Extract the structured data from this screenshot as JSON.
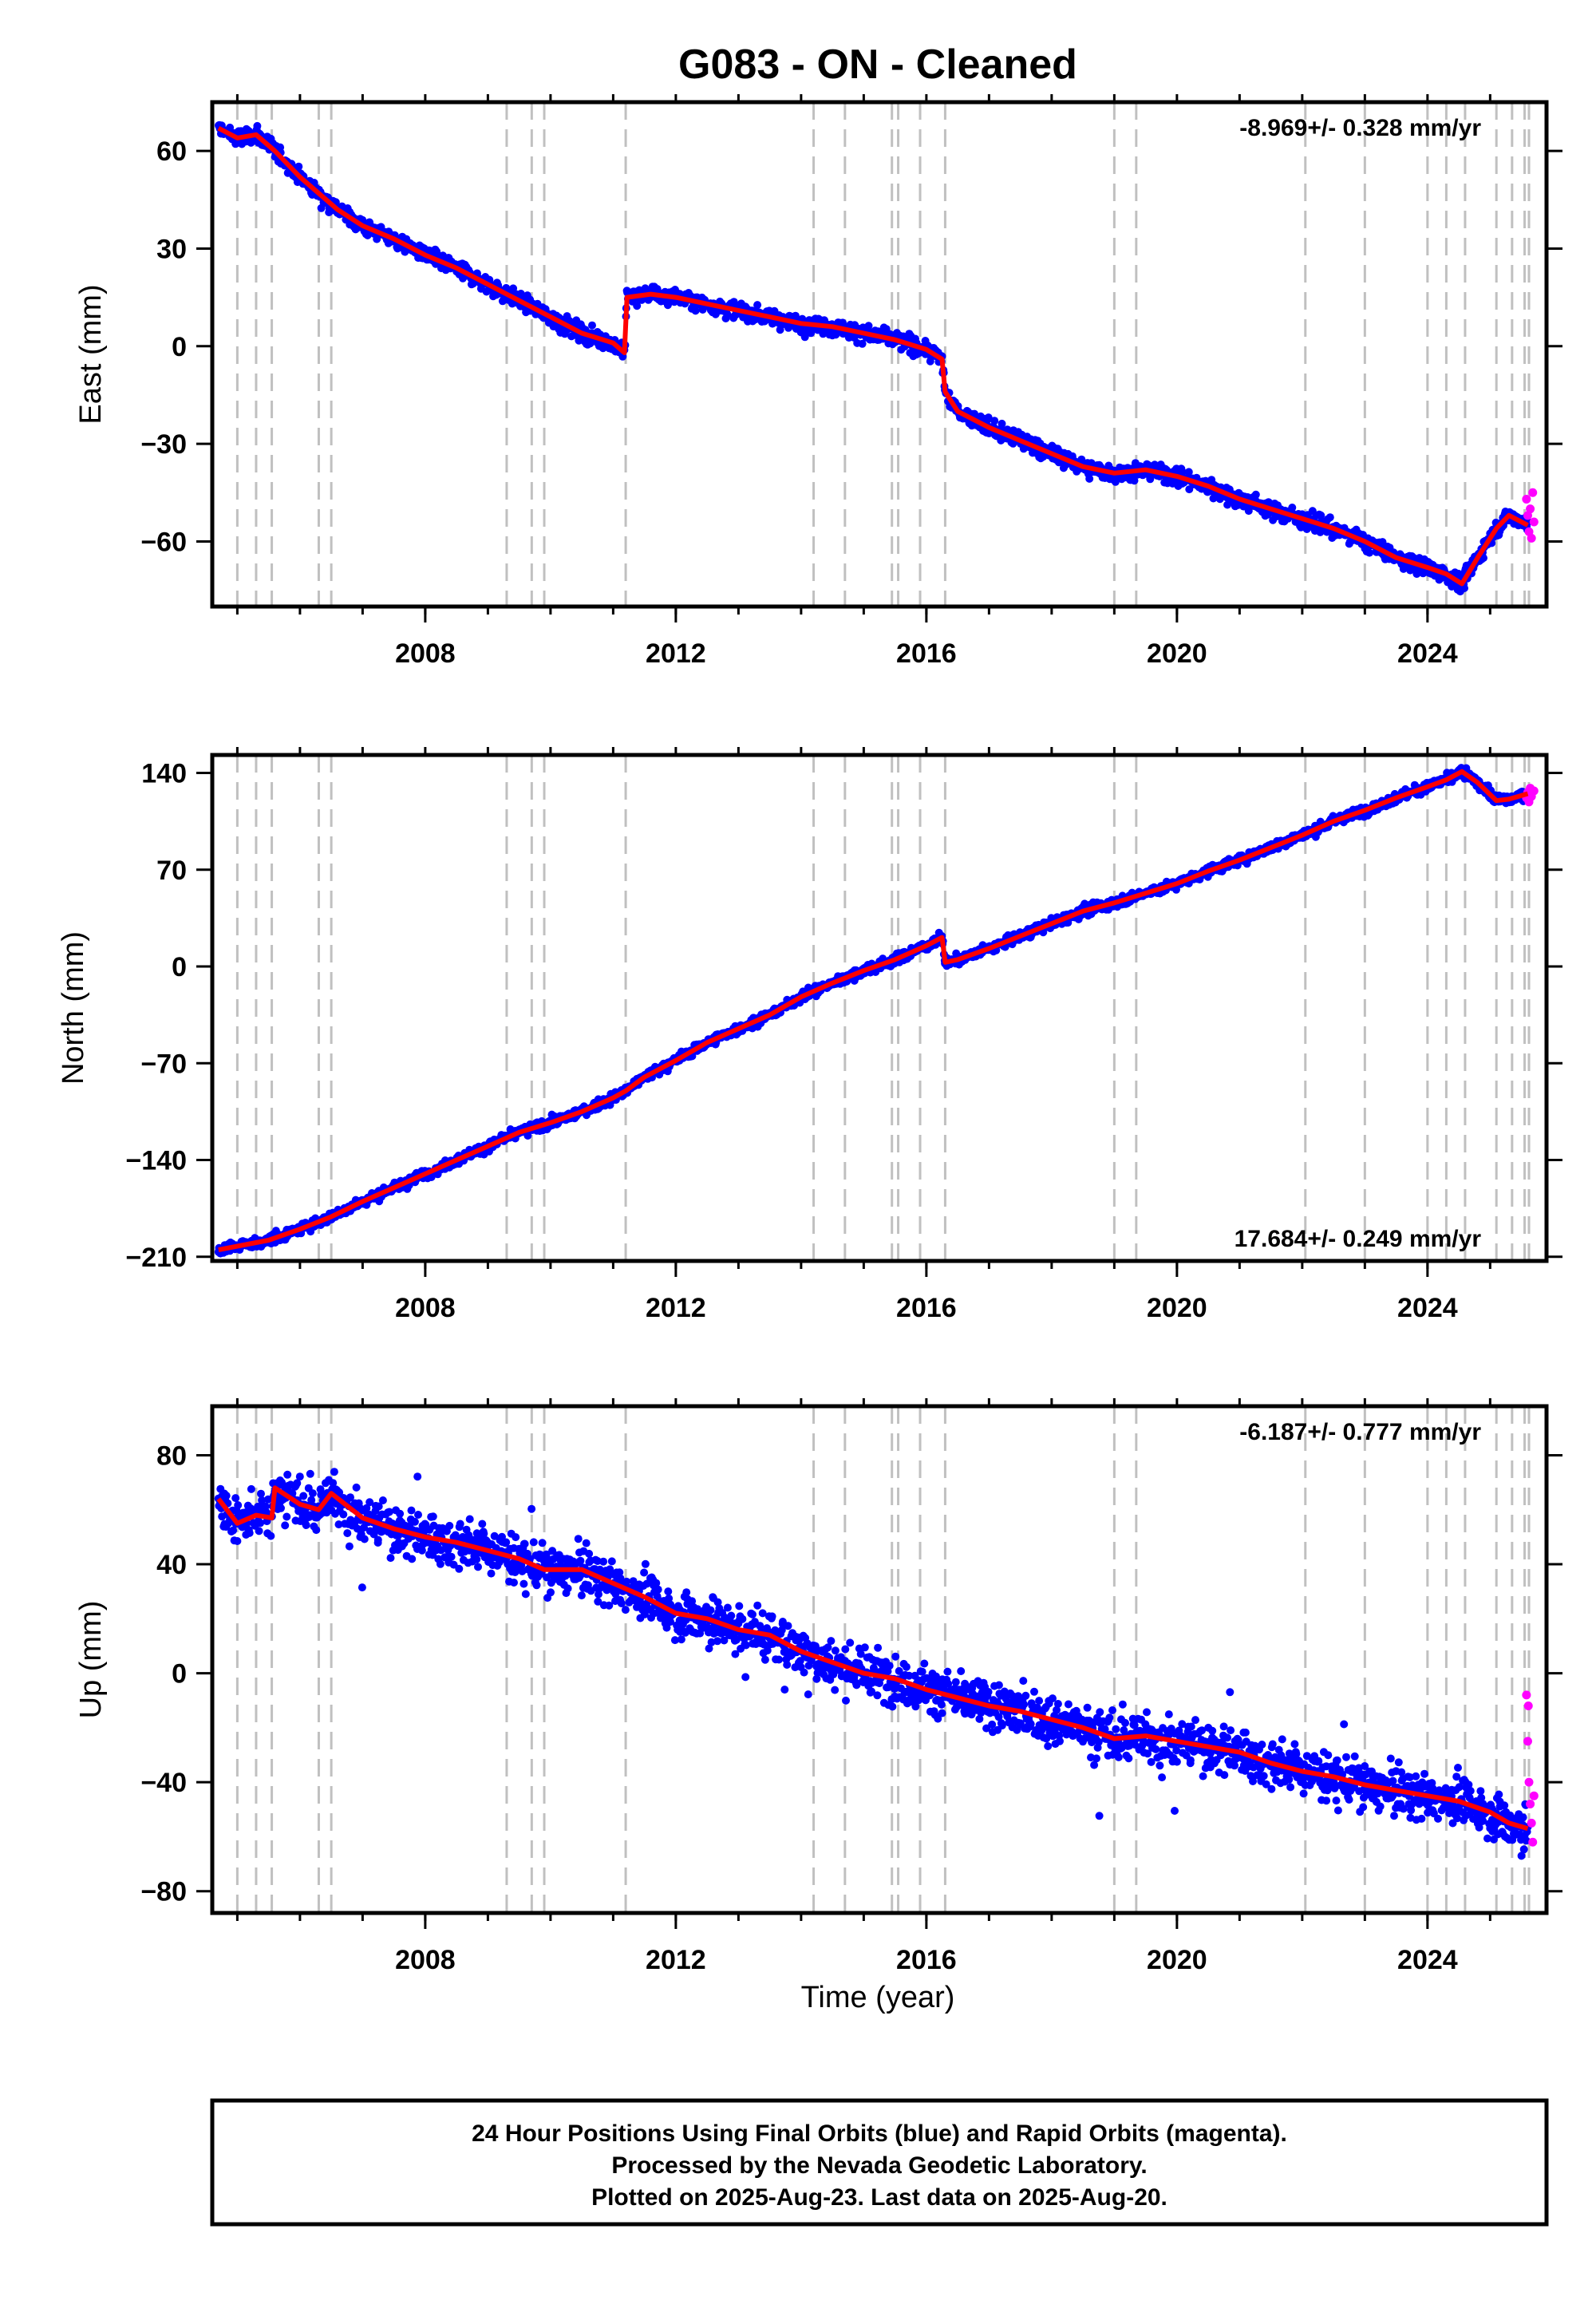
{
  "title": "G083  - ON - Cleaned",
  "xlabel": "Time (year)",
  "footer": {
    "line1": "24 Hour Positions Using Final Orbits (blue) and Rapid Orbits (magenta).",
    "line2": "Processed by the Nevada Geodetic Laboratory.",
    "line3": "Plotted on 2025-Aug-23. Last data on 2025-Aug-20."
  },
  "colors": {
    "final_orbits": "#0000ff",
    "rapid_orbits": "#ff00ff",
    "model": "#ff0000",
    "event_lines": "#c0c0c0"
  },
  "chart_data": [
    {
      "type": "scatter",
      "component": "east",
      "ylabel": "East (mm)",
      "rate_label": "-8.969+/- 0.328 mm/yr",
      "rate_position": "top-right",
      "xlim": [
        2004.6,
        2025.9
      ],
      "ylim": [
        -80,
        75
      ],
      "xticks": [
        2008,
        2012,
        2016,
        2020,
        2024
      ],
      "yticks": [
        60,
        30,
        0,
        -30,
        -60
      ],
      "grid": false,
      "event_years": [
        2005.0,
        2005.3,
        2005.55,
        2006.3,
        2006.5,
        2009.3,
        2009.7,
        2009.9,
        2011.2,
        2014.2,
        2014.7,
        2015.45,
        2015.55,
        2015.9,
        2016.3,
        2019.0,
        2019.35,
        2022.05,
        2023.0,
        2024.0,
        2024.3,
        2024.6,
        2025.1,
        2025.35,
        2025.55,
        2025.62
      ],
      "series": [
        {
          "values": [
            [
              2004.7,
              67
            ],
            [
              2005.0,
              64
            ],
            [
              2005.3,
              65
            ],
            [
              2005.6,
              60
            ],
            [
              2006.0,
              52
            ],
            [
              2006.3,
              47
            ],
            [
              2006.6,
              42
            ],
            [
              2007.0,
              37
            ],
            [
              2007.5,
              33
            ],
            [
              2008.0,
              28
            ],
            [
              2008.5,
              24
            ],
            [
              2009.0,
              19
            ],
            [
              2009.5,
              14
            ],
            [
              2010.0,
              9
            ],
            [
              2010.5,
              4
            ],
            [
              2011.0,
              1
            ],
            [
              2011.18,
              -2
            ],
            [
              2011.22,
              15
            ],
            [
              2011.6,
              16
            ],
            [
              2012.0,
              15
            ],
            [
              2012.5,
              13
            ],
            [
              2013.0,
              11
            ],
            [
              2013.5,
              9
            ],
            [
              2014.0,
              7
            ],
            [
              2014.5,
              6
            ],
            [
              2015.0,
              4
            ],
            [
              2015.5,
              2
            ],
            [
              2016.0,
              -1
            ],
            [
              2016.25,
              -4
            ],
            [
              2016.3,
              -14
            ],
            [
              2016.5,
              -20
            ],
            [
              2017.0,
              -25
            ],
            [
              2017.5,
              -29
            ],
            [
              2018.0,
              -33
            ],
            [
              2018.5,
              -37
            ],
            [
              2019.0,
              -39
            ],
            [
              2019.5,
              -38
            ],
            [
              2020.0,
              -40
            ],
            [
              2020.5,
              -43
            ],
            [
              2021.0,
              -47
            ],
            [
              2021.5,
              -50
            ],
            [
              2022.0,
              -53
            ],
            [
              2022.5,
              -56
            ],
            [
              2023.0,
              -60
            ],
            [
              2023.5,
              -65
            ],
            [
              2024.0,
              -68
            ],
            [
              2024.3,
              -70
            ],
            [
              2024.55,
              -73
            ],
            [
              2024.8,
              -65
            ],
            [
              2025.1,
              -56
            ],
            [
              2025.3,
              -52
            ],
            [
              2025.6,
              -55
            ]
          ]
        }
      ],
      "rapid_values": [
        [
          2025.58,
          -47
        ],
        [
          2025.6,
          -52
        ],
        [
          2025.62,
          -57
        ],
        [
          2025.64,
          -50
        ],
        [
          2025.66,
          -59
        ],
        [
          2025.68,
          -45
        ],
        [
          2025.7,
          -54
        ]
      ]
    },
    {
      "type": "scatter",
      "component": "north",
      "ylabel": "North (mm)",
      "rate_label": "17.684+/- 0.249 mm/yr",
      "rate_position": "bottom-right",
      "xlim": [
        2004.6,
        2025.9
      ],
      "ylim": [
        -213,
        153
      ],
      "xticks": [
        2008,
        2012,
        2016,
        2020,
        2024
      ],
      "yticks": [
        140,
        70,
        0,
        -70,
        -140,
        -210
      ],
      "grid": false,
      "event_years": [
        2005.0,
        2005.3,
        2005.55,
        2006.3,
        2006.5,
        2009.3,
        2009.7,
        2009.9,
        2011.2,
        2014.2,
        2014.7,
        2015.45,
        2015.55,
        2015.9,
        2016.3,
        2019.0,
        2019.35,
        2022.05,
        2023.0,
        2024.0,
        2024.3,
        2024.6,
        2025.1,
        2025.35,
        2025.55,
        2025.62
      ],
      "series": [
        {
          "values": [
            [
              2004.7,
              -205
            ],
            [
              2005.5,
              -198
            ],
            [
              2006.0,
              -190
            ],
            [
              2006.5,
              -181
            ],
            [
              2007.0,
              -170
            ],
            [
              2007.5,
              -160
            ],
            [
              2008.0,
              -150
            ],
            [
              2008.5,
              -140
            ],
            [
              2009.0,
              -130
            ],
            [
              2009.5,
              -120
            ],
            [
              2010.0,
              -113
            ],
            [
              2010.5,
              -105
            ],
            [
              2011.0,
              -95
            ],
            [
              2011.2,
              -90
            ],
            [
              2011.5,
              -80
            ],
            [
              2012.0,
              -68
            ],
            [
              2012.5,
              -55
            ],
            [
              2013.0,
              -45
            ],
            [
              2013.5,
              -35
            ],
            [
              2014.0,
              -22
            ],
            [
              2014.5,
              -12
            ],
            [
              2015.0,
              -3
            ],
            [
              2015.5,
              5
            ],
            [
              2016.0,
              15
            ],
            [
              2016.25,
              21
            ],
            [
              2016.3,
              3
            ],
            [
              2016.5,
              5
            ],
            [
              2017.0,
              13
            ],
            [
              2017.5,
              22
            ],
            [
              2018.0,
              31
            ],
            [
              2018.5,
              40
            ],
            [
              2019.0,
              46
            ],
            [
              2019.5,
              53
            ],
            [
              2020.0,
              60
            ],
            [
              2020.5,
              69
            ],
            [
              2021.0,
              77
            ],
            [
              2021.5,
              86
            ],
            [
              2022.0,
              95
            ],
            [
              2022.5,
              105
            ],
            [
              2023.0,
              113
            ],
            [
              2023.5,
              122
            ],
            [
              2024.0,
              130
            ],
            [
              2024.3,
              135
            ],
            [
              2024.55,
              141
            ],
            [
              2024.8,
              133
            ],
            [
              2025.1,
              120
            ],
            [
              2025.3,
              121
            ],
            [
              2025.6,
              125
            ]
          ]
        }
      ],
      "rapid_values": [
        [
          2025.58,
          122
        ],
        [
          2025.6,
          126
        ],
        [
          2025.62,
          119
        ],
        [
          2025.64,
          129
        ],
        [
          2025.66,
          123
        ],
        [
          2025.7,
          127
        ]
      ]
    },
    {
      "type": "scatter",
      "component": "up",
      "ylabel": "Up (mm)",
      "rate_label": "-6.187+/- 0.777 mm/yr",
      "rate_position": "top-right",
      "xlim": [
        2004.6,
        2025.9
      ],
      "ylim": [
        -88,
        98
      ],
      "xticks": [
        2008,
        2012,
        2016,
        2020,
        2024
      ],
      "yticks": [
        80,
        40,
        0,
        -40,
        -80
      ],
      "grid": false,
      "event_years": [
        2005.0,
        2005.3,
        2005.55,
        2006.3,
        2006.5,
        2009.3,
        2009.7,
        2009.9,
        2011.2,
        2014.2,
        2014.7,
        2015.45,
        2015.55,
        2015.9,
        2016.3,
        2019.0,
        2019.35,
        2022.05,
        2023.0,
        2024.0,
        2024.3,
        2024.6,
        2025.1,
        2025.35,
        2025.55,
        2025.62
      ],
      "series": [
        {
          "values": [
            [
              2004.7,
              64
            ],
            [
              2005.0,
              55
            ],
            [
              2005.3,
              58
            ],
            [
              2005.55,
              57
            ],
            [
              2005.6,
              68
            ],
            [
              2006.0,
              62
            ],
            [
              2006.3,
              60
            ],
            [
              2006.5,
              66
            ],
            [
              2007.0,
              57
            ],
            [
              2007.5,
              53
            ],
            [
              2008.0,
              50
            ],
            [
              2008.5,
              48
            ],
            [
              2009.0,
              45
            ],
            [
              2009.5,
              42
            ],
            [
              2009.9,
              38
            ],
            [
              2010.5,
              38
            ],
            [
              2011.0,
              33
            ],
            [
              2011.5,
              28
            ],
            [
              2012.0,
              22
            ],
            [
              2012.5,
              20
            ],
            [
              2013.0,
              16
            ],
            [
              2013.5,
              14
            ],
            [
              2014.0,
              8
            ],
            [
              2014.5,
              4
            ],
            [
              2015.0,
              0
            ],
            [
              2015.5,
              -2
            ],
            [
              2016.0,
              -6
            ],
            [
              2016.5,
              -9
            ],
            [
              2017.0,
              -12
            ],
            [
              2017.5,
              -14
            ],
            [
              2018.0,
              -17
            ],
            [
              2018.5,
              -20
            ],
            [
              2019.0,
              -24
            ],
            [
              2019.5,
              -23
            ],
            [
              2020.0,
              -25
            ],
            [
              2020.5,
              -27
            ],
            [
              2021.0,
              -29
            ],
            [
              2021.5,
              -33
            ],
            [
              2022.0,
              -36
            ],
            [
              2022.5,
              -38
            ],
            [
              2023.0,
              -41
            ],
            [
              2023.5,
              -43
            ],
            [
              2024.0,
              -45
            ],
            [
              2024.5,
              -47
            ],
            [
              2025.0,
              -51
            ],
            [
              2025.3,
              -55
            ],
            [
              2025.6,
              -57
            ]
          ]
        }
      ],
      "rapid_values": [
        [
          2025.58,
          -8
        ],
        [
          2025.6,
          -25
        ],
        [
          2025.61,
          -12
        ],
        [
          2025.62,
          -40
        ],
        [
          2025.64,
          -48
        ],
        [
          2025.66,
          -55
        ],
        [
          2025.68,
          -62
        ],
        [
          2025.7,
          -45
        ]
      ]
    }
  ]
}
